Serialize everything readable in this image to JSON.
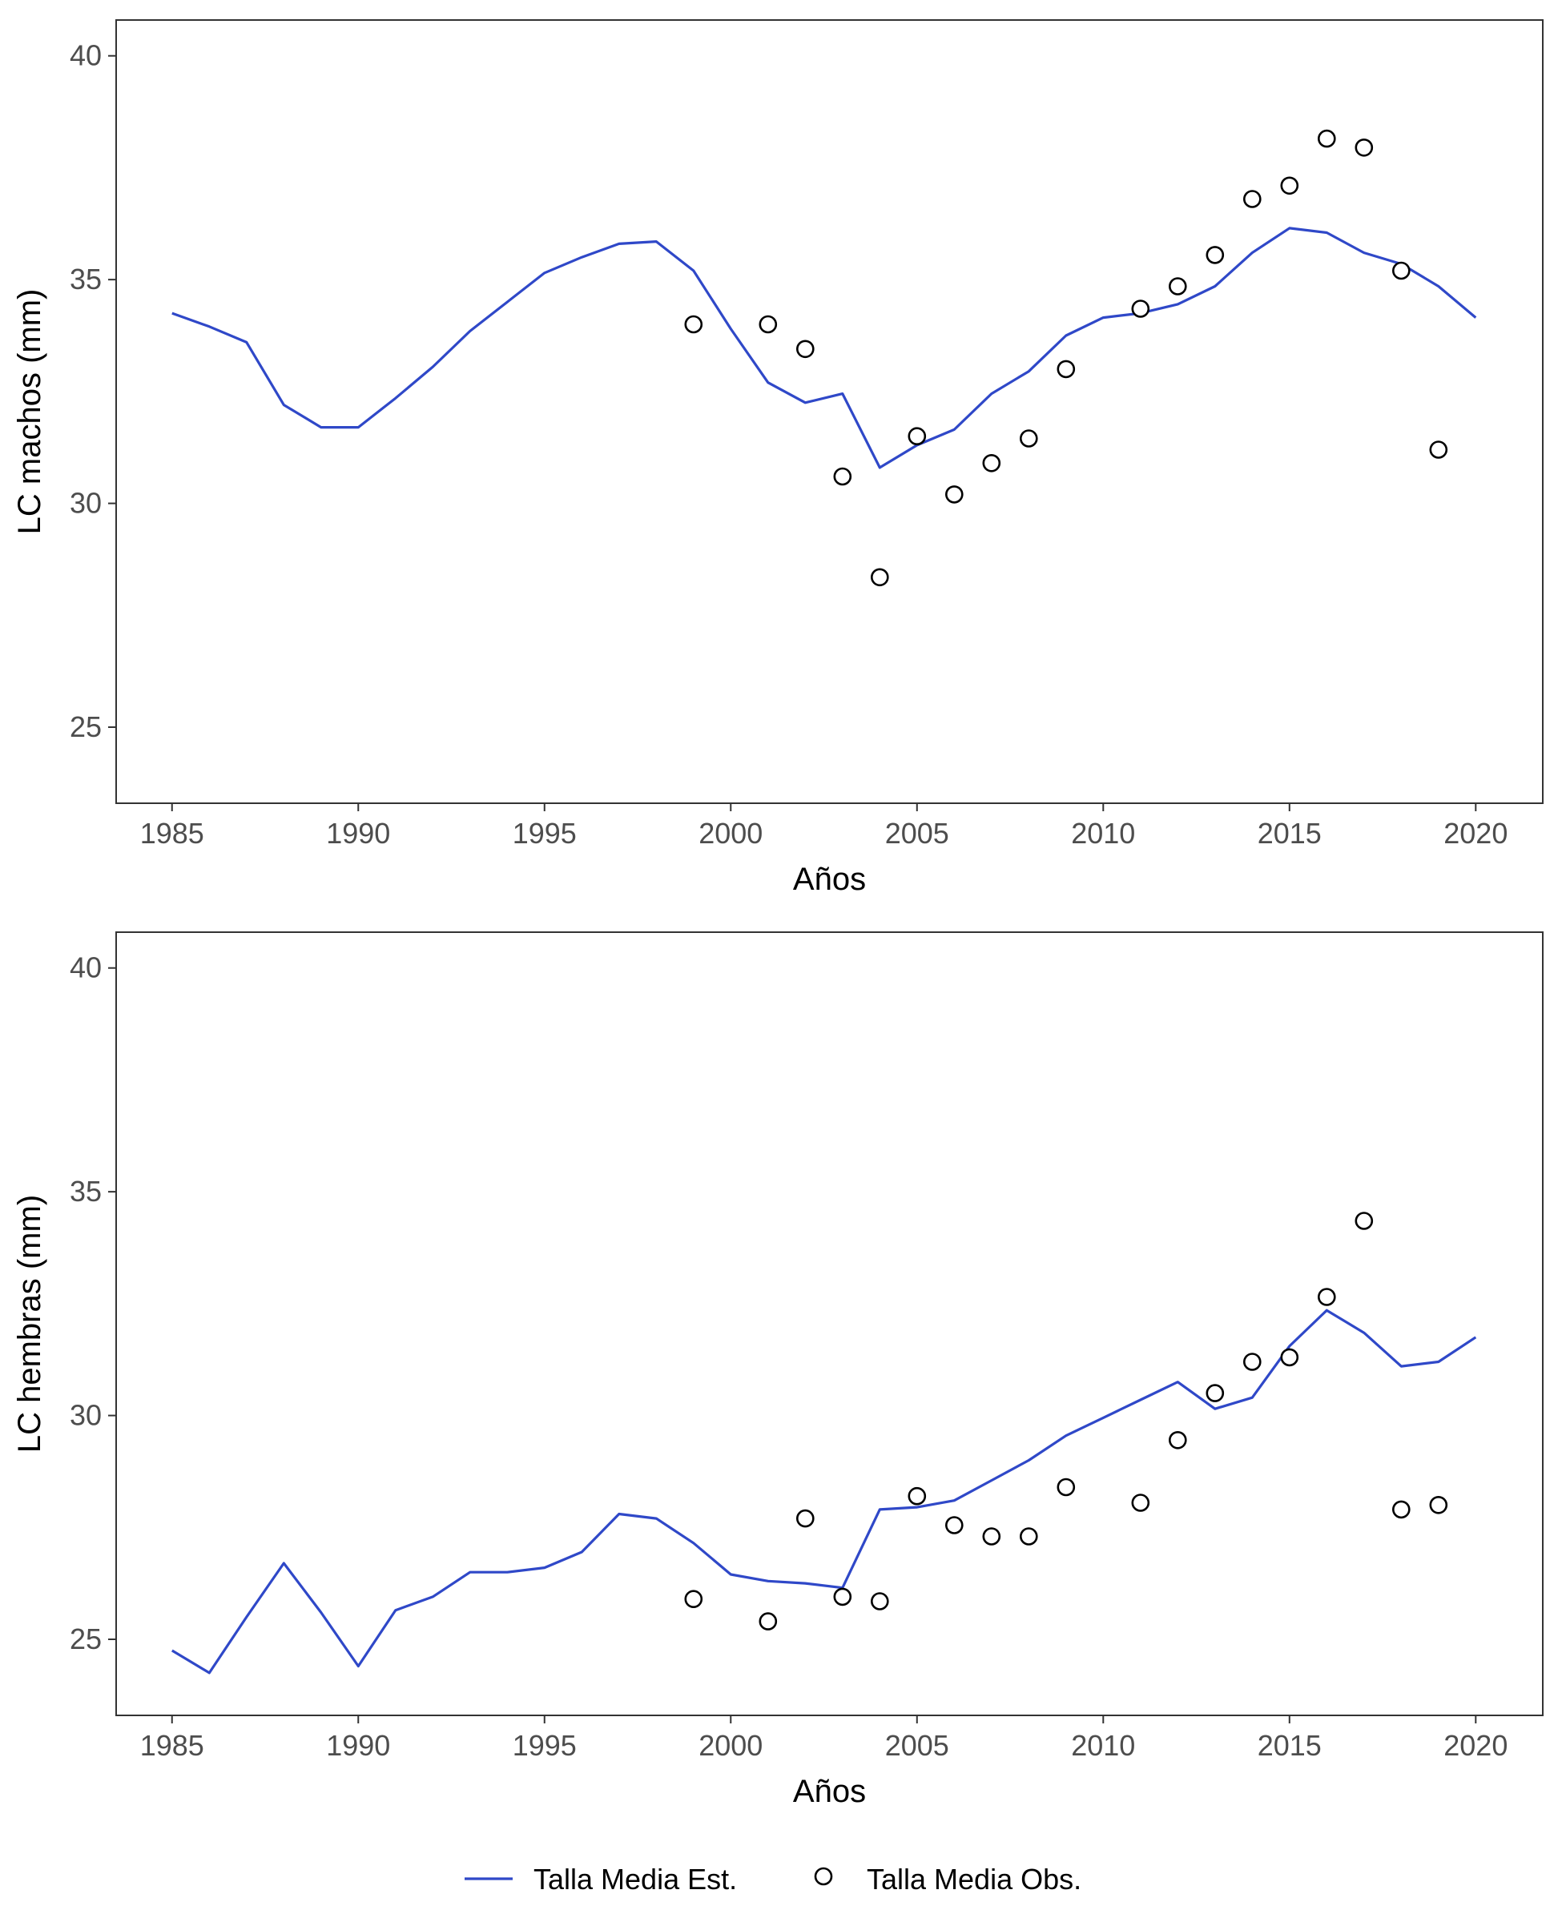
{
  "chart_data": [
    {
      "type": "line",
      "panel": "machos",
      "xlabel": "Años",
      "ylabel": "LC machos (mm)",
      "xlim": [
        1983.5,
        2021.8
      ],
      "ylim": [
        23.3,
        40.8
      ],
      "x_ticks": [
        1985,
        1990,
        1995,
        2000,
        2005,
        2010,
        2015,
        2020
      ],
      "y_ticks": [
        25,
        30,
        35,
        40
      ],
      "grid": false,
      "series": [
        {
          "name": "Talla Media Est.",
          "kind": "line",
          "color": "#2f48c8",
          "x": [
            1985,
            1986,
            1987,
            1988,
            1989,
            1990,
            1991,
            1992,
            1993,
            1994,
            1995,
            1996,
            1997,
            1998,
            1999,
            2000,
            2001,
            2002,
            2003,
            2004,
            2005,
            2006,
            2007,
            2008,
            2009,
            2010,
            2011,
            2012,
            2013,
            2014,
            2015,
            2016,
            2017,
            2018,
            2019,
            2020
          ],
          "y": [
            34.25,
            33.95,
            33.6,
            32.2,
            31.7,
            31.7,
            32.35,
            33.05,
            33.85,
            34.5,
            35.15,
            35.5,
            35.8,
            35.85,
            35.2,
            33.9,
            32.7,
            32.25,
            32.45,
            30.8,
            31.3,
            31.65,
            32.45,
            32.95,
            33.75,
            34.15,
            34.25,
            34.45,
            34.85,
            35.6,
            36.15,
            36.05,
            35.6,
            35.35,
            34.85,
            34.15
          ]
        },
        {
          "name": "Talla Media Obs.",
          "kind": "points",
          "x": [
            1999,
            2001,
            2002,
            2003,
            2004,
            2005,
            2006,
            2007,
            2008,
            2009,
            2011,
            2012,
            2013,
            2014,
            2015,
            2016,
            2017,
            2018,
            2019
          ],
          "y": [
            34.0,
            34.0,
            33.45,
            30.6,
            28.35,
            31.5,
            30.2,
            30.9,
            31.45,
            33.0,
            34.35,
            34.85,
            35.55,
            36.8,
            37.1,
            38.15,
            37.95,
            35.2,
            31.2
          ]
        }
      ]
    },
    {
      "type": "line",
      "panel": "hembras",
      "xlabel": "Años",
      "ylabel": "LC hembras (mm)",
      "xlim": [
        1983.5,
        2021.8
      ],
      "ylim": [
        23.3,
        40.8
      ],
      "x_ticks": [
        1985,
        1990,
        1995,
        2000,
        2005,
        2010,
        2015,
        2020
      ],
      "y_ticks": [
        25,
        30,
        35,
        40
      ],
      "grid": false,
      "series": [
        {
          "name": "Talla Media Est.",
          "kind": "line",
          "color": "#2f48c8",
          "x": [
            1985,
            1986,
            1987,
            1988,
            1989,
            1990,
            1991,
            1992,
            1993,
            1994,
            1995,
            1996,
            1997,
            1998,
            1999,
            2000,
            2001,
            2002,
            2003,
            2004,
            2005,
            2006,
            2007,
            2008,
            2009,
            2010,
            2011,
            2012,
            2013,
            2014,
            2015,
            2016,
            2017,
            2018,
            2019,
            2020
          ],
          "y": [
            24.75,
            24.25,
            25.5,
            26.7,
            25.6,
            24.4,
            25.65,
            25.95,
            26.5,
            26.5,
            26.6,
            26.95,
            27.8,
            27.7,
            27.15,
            26.45,
            26.3,
            26.25,
            26.15,
            27.9,
            27.95,
            28.1,
            28.55,
            29.0,
            29.55,
            29.95,
            30.35,
            30.75,
            30.15,
            30.4,
            31.55,
            32.35,
            31.85,
            31.1,
            31.2,
            31.75
          ]
        },
        {
          "name": "Talla Media Obs.",
          "kind": "points",
          "x": [
            1999,
            2001,
            2002,
            2003,
            2004,
            2005,
            2006,
            2007,
            2008,
            2009,
            2011,
            2012,
            2013,
            2014,
            2015,
            2016,
            2017,
            2018,
            2019
          ],
          "y": [
            25.9,
            25.4,
            27.7,
            25.95,
            25.85,
            28.2,
            27.55,
            27.3,
            27.3,
            28.4,
            28.05,
            29.45,
            30.5,
            31.2,
            31.3,
            32.65,
            34.35,
            27.9,
            28.0
          ]
        }
      ]
    }
  ],
  "legend": {
    "position": "bottom",
    "items": [
      {
        "label": "Talla Media Est.",
        "symbol": "line",
        "color": "#2f48c8"
      },
      {
        "label": "Talla Media Obs.",
        "symbol": "open-circle",
        "color": "#000000"
      }
    ]
  },
  "colors": {
    "estimated_line": "#2f48c8",
    "observed_points": "#000000",
    "panel_border": "#333333",
    "tick_label": "#4d4d4d"
  }
}
